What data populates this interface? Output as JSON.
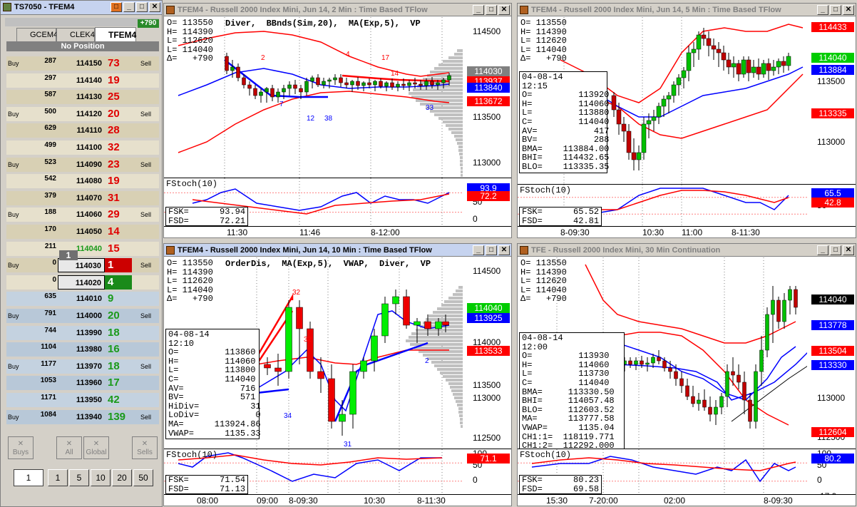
{
  "ladder": {
    "title": "TS7050 - TFEM4",
    "tabs": [
      "GCEM4",
      "CLEK4",
      "TFEM4"
    ],
    "pnl": "+790",
    "position": "No Position",
    "rows": [
      {
        "buy": "Buy",
        "bid": "287",
        "price": "114150",
        "ask": "73",
        "sell": "Sell"
      },
      {
        "buy": "",
        "bid": "297",
        "price": "114140",
        "ask": "19",
        "sell": ""
      },
      {
        "buy": "",
        "bid": "587",
        "price": "114130",
        "ask": "25",
        "sell": ""
      },
      {
        "buy": "Buy",
        "bid": "500",
        "price": "114120",
        "ask": "20",
        "sell": "Sell"
      },
      {
        "buy": "",
        "bid": "629",
        "price": "114110",
        "ask": "28",
        "sell": ""
      },
      {
        "buy": "",
        "bid": "499",
        "price": "114100",
        "ask": "32",
        "sell": ""
      },
      {
        "buy": "Buy",
        "bid": "523",
        "price": "114090",
        "ask": "23",
        "sell": "Sell"
      },
      {
        "buy": "",
        "bid": "542",
        "price": "114080",
        "ask": "19",
        "sell": ""
      },
      {
        "buy": "",
        "bid": "379",
        "price": "114070",
        "ask": "31",
        "sell": ""
      },
      {
        "buy": "Buy",
        "bid": "188",
        "price": "114060",
        "ask": "29",
        "sell": "Sell"
      },
      {
        "buy": "",
        "bid": "170",
        "price": "114050",
        "ask": "14",
        "sell": ""
      },
      {
        "buy": "",
        "bid": "211",
        "price": "114040",
        "ask": "15",
        "sell": ""
      },
      {
        "buy": "Buy",
        "bid": "0",
        "price": "114030",
        "ask": "1",
        "sell": "Sell"
      },
      {
        "buy": "",
        "bid": "0",
        "price": "114020",
        "ask": "4",
        "sell": ""
      },
      {
        "buy": "",
        "bid": "635",
        "price": "114010",
        "ask": "9",
        "sell": ""
      },
      {
        "buy": "Buy",
        "bid": "791",
        "price": "114000",
        "ask": "20",
        "sell": "Sell"
      },
      {
        "buy": "",
        "bid": "744",
        "price": "113990",
        "ask": "18",
        "sell": ""
      },
      {
        "buy": "",
        "bid": "1104",
        "price": "113980",
        "ask": "16",
        "sell": ""
      },
      {
        "buy": "Buy",
        "bid": "1177",
        "price": "113970",
        "ask": "18",
        "sell": "Sell"
      },
      {
        "buy": "",
        "bid": "1053",
        "price": "113960",
        "ask": "17",
        "sell": ""
      },
      {
        "buy": "",
        "bid": "1171",
        "price": "113950",
        "ask": "42",
        "sell": ""
      },
      {
        "buy": "Buy",
        "bid": "1084",
        "price": "113940",
        "ask": "139",
        "sell": "Sell"
      }
    ],
    "flag": "1",
    "buttons": [
      "Buys",
      "All",
      "Global",
      "Sells"
    ],
    "qty": "1",
    "qty_presets": [
      "1",
      "5",
      "10",
      "20",
      "50"
    ]
  },
  "charts": [
    {
      "title": "TFEM4 - Russell 2000 Index Mini, Jun 14, 2 Min : Time Based TFlow",
      "ohlc": [
        "O= 113550",
        "H= 114390",
        "L= 112620",
        "L= 114040",
        "Δ=   +790"
      ],
      "studies": "Diver,  BBnds(Sim,20),  MA(Exp,5),  VP",
      "axis": [
        "114500",
        "114000",
        "113500",
        "113000"
      ],
      "tags": [
        {
          "v": "114030",
          "c": "#808080"
        },
        {
          "v": "113937",
          "c": "#ff0000"
        },
        {
          "v": "113840",
          "c": "#0000ff"
        },
        {
          "v": "113672",
          "c": "#ff0000"
        }
      ],
      "annot": [
        "2",
        "4",
        "17",
        "14",
        "7",
        "12",
        "38",
        "33"
      ],
      "stoch": {
        "label": "FStoch(10)",
        "vals": [
          "FSK=      93.94",
          "FSD=      72.21"
        ],
        "axis": [
          "100",
          "50",
          "0"
        ],
        "tags": [
          "93.9",
          "72.2"
        ]
      },
      "times": [
        "11:30",
        "11:46",
        "8-12:00"
      ]
    },
    {
      "title": "TFEM4 - Russell 2000 Index Mini, Jun 14, 5 Min : Time Based TFlow",
      "ohlc": [
        "O= 113550",
        "H= 114390",
        "L= 112620",
        "L= 114040",
        "Δ=   +790"
      ],
      "info": [
        "04-08-14",
        "12:15",
        "O=         113920",
        "H=         114060",
        "L=         113880",
        "C=         114040",
        "AV=           417",
        "BV=           288",
        "BMA=    113884.00",
        "BHI=    114432.65",
        "BLO=    113335.35"
      ],
      "axis": [
        "114000",
        "113500",
        "113000"
      ],
      "tags": [
        {
          "v": "114433",
          "c": "#ff0000"
        },
        {
          "v": "114040",
          "c": "#00cc00"
        },
        {
          "v": "113884",
          "c": "#0000ff"
        },
        {
          "v": "113335",
          "c": "#ff0000"
        }
      ],
      "stoch": {
        "label": "FStoch(10)",
        "vals": [
          "FSK=      65.52",
          "FSD=      42.81"
        ],
        "axis": [
          "100",
          "50"
        ],
        "tags": [
          "65.5",
          "42.8"
        ]
      },
      "times": [
        "8-09:30",
        "10:30",
        "11:00",
        "8-11:30"
      ]
    },
    {
      "title": "TFEM4 - Russell 2000 Index Mini, Jun 14, 10 Min : Time Based TFlow",
      "ohlc": [
        "O= 113550",
        "H= 114390",
        "L= 112620",
        "L= 114040",
        "Δ=   +790"
      ],
      "studies": "OrderDis,  MA(Exp,5),  VWAP,  Diver,  VP",
      "info": [
        "04-08-14",
        "12:10",
        "O=         113860",
        "H=         114060",
        "L=         113800",
        "C=         114040",
        "AV=           716",
        "BV=           571",
        "HiDiv=          31",
        "LoDiv=           0",
        "MA=      113924.86",
        "VWAP=      1135.33"
      ],
      "axis": [
        "114500",
        "114000",
        "113500",
        "113000",
        "112500"
      ],
      "tags": [
        {
          "v": "114040",
          "c": "#00cc00"
        },
        {
          "v": "113925",
          "c": "#0000ff"
        },
        {
          "v": "113533",
          "c": "#ff0000"
        }
      ],
      "annot": [
        "32",
        "32",
        "34",
        "31",
        "2"
      ],
      "stoch": {
        "label": "FStoch(10)",
        "vals": [
          "FSK=      71.54",
          "FSD=      71.13"
        ],
        "axis": [
          "100",
          "50",
          "0"
        ],
        "tags": [
          "71.1"
        ]
      },
      "times": [
        "08:00",
        "09:00",
        "8-09:30",
        "10:30",
        "8-11:30"
      ]
    },
    {
      "title": "TFE - Russell 2000 Index Mini, 30 Min Continuation",
      "ohlc": [
        "O= 113550",
        "H= 114390",
        "L= 112620",
        "L= 114040",
        "Δ=   +790"
      ],
      "info": [
        "04-08-14",
        "12:00",
        "O=         113930",
        "H=         114060",
        "L=         113730",
        "C=         114040",
        "BMA=     113330.50",
        "BHI=     114057.48",
        "BLO=     112603.52",
        "MA=      113777.58",
        "VWAP=      1135.04",
        "CH1:1=  118119.771",
        "CH1:2=  112292.000"
      ],
      "axis": [
        "113000",
        "112500"
      ],
      "tags": [
        {
          "v": "114040",
          "c": "#000000"
        },
        {
          "v": "113778",
          "c": "#0000ff"
        },
        {
          "v": "113504",
          "c": "#ff0000"
        },
        {
          "v": "113330",
          "c": "#0000ff"
        },
        {
          "v": "112604",
          "c": "#ff0000"
        }
      ],
      "stoch": {
        "label": "FStoch(10)",
        "vals": [
          "FSK=      80.23",
          "FSD=      69.58"
        ],
        "axis": [
          "100",
          "50",
          "0",
          "-17.9"
        ],
        "tags": [
          "80.2"
        ]
      },
      "times": [
        "15:30",
        "7-20:00",
        "02:00",
        "8-09:30"
      ]
    }
  ]
}
